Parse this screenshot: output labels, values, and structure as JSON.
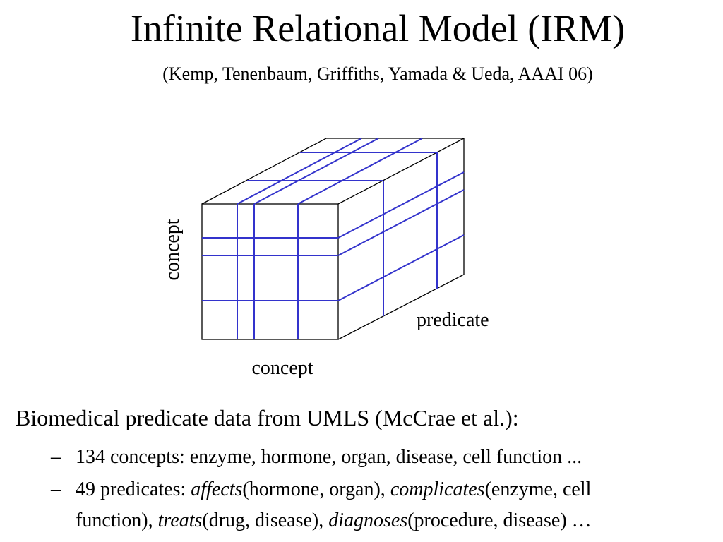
{
  "slide": {
    "title": "Infinite Relational Model (IRM)",
    "subtitle": "(Kemp, Tenenbaum, Griffiths, Yamada & Ueda, AAAI 06)"
  },
  "diagram": {
    "axis_left": "concept",
    "axis_bottom": "concept",
    "axis_depth": "predicate",
    "colors": {
      "outline": "#000000",
      "partition": "#3333cc"
    }
  },
  "content": {
    "heading": "Biomedical predicate data from UMLS (McCrae et al.):",
    "bullet_marker": "–",
    "bullet1": "134 concepts: enzyme, hormone, organ, disease, cell function ...",
    "bullet2": {
      "prefix": "49 predicates: ",
      "p1_name": "affects",
      "p1_args": "(hormone, organ), ",
      "p2_name": "complicates",
      "p2_args_line1": "(enzyme, cell",
      "p2_args_line2": "function), ",
      "p3_name": "treats",
      "p3_args": "(drug, disease), ",
      "p4_name": "diagnoses",
      "p4_args": "(procedure, disease) …"
    }
  }
}
